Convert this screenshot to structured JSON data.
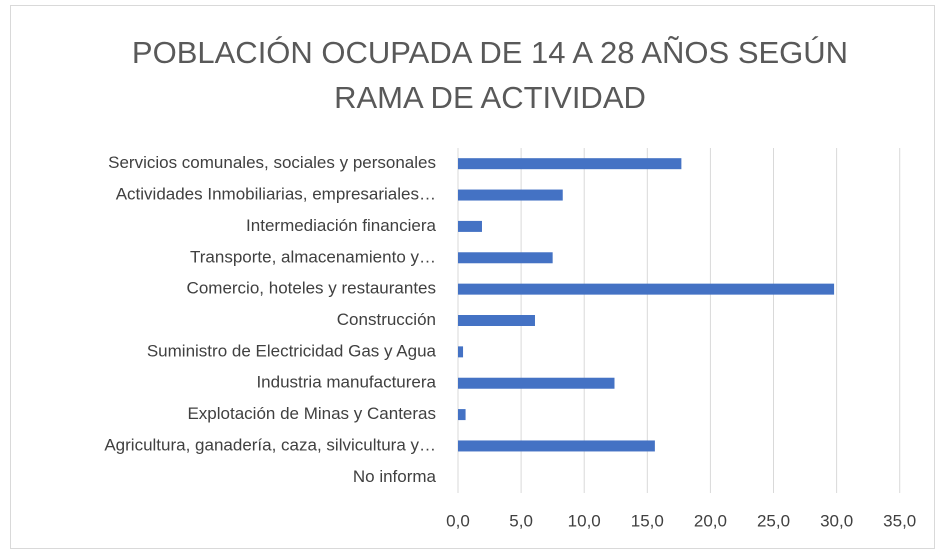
{
  "chart_data": {
    "type": "bar",
    "orientation": "horizontal",
    "title": "POBLACIÓN OCUPADA DE 14 A 28 AÑOS SEGÚN RAMA DE ACTIVIDAD",
    "categories": [
      "Servicios comunales, sociales y personales",
      "Actividades Inmobiliarias, empresariales…",
      "Intermediación financiera",
      "Transporte, almacenamiento y…",
      "Comercio, hoteles y restaurantes",
      "Construcción",
      "Suministro de Electricidad Gas y Agua",
      "Industria manufacturera",
      "Explotación de Minas y Canteras",
      "Agricultura, ganadería, caza, silvicultura y…",
      "No informa"
    ],
    "values": [
      17.7,
      8.3,
      1.9,
      7.5,
      29.8,
      6.1,
      0.4,
      12.4,
      0.6,
      15.6,
      0
    ],
    "color": "#4472c4",
    "xlim": [
      0,
      37.4
    ],
    "xticks": [
      {
        "value": 0,
        "label": "0,0"
      },
      {
        "value": 5,
        "label": "5,0"
      },
      {
        "value": 10,
        "label": "10,0"
      },
      {
        "value": 15,
        "label": "15,0"
      },
      {
        "value": 20,
        "label": "20,0"
      },
      {
        "value": 25,
        "label": "25,0"
      },
      {
        "value": 30,
        "label": "30,0"
      },
      {
        "value": 35,
        "label": "35,0"
      }
    ],
    "grid": true
  }
}
